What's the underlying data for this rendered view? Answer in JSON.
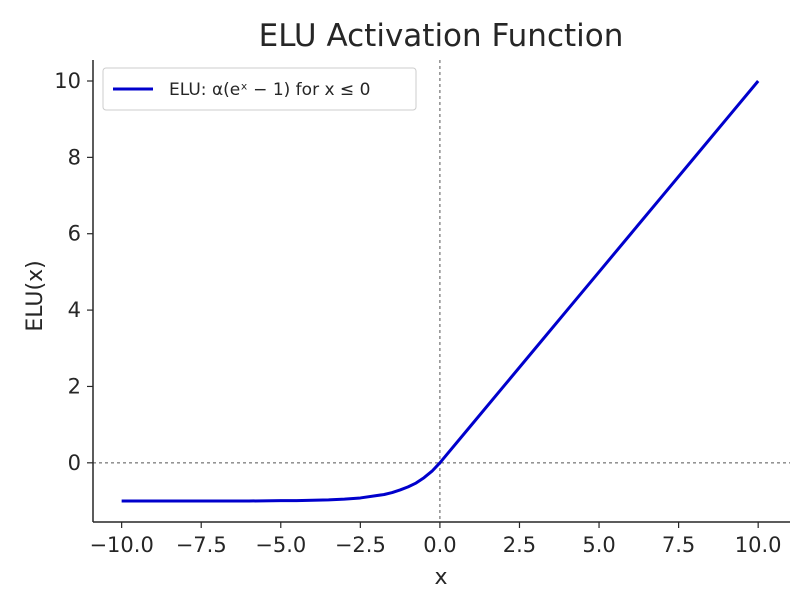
{
  "chart_data": {
    "type": "line",
    "title": "ELU Activation Function",
    "xlabel": "x",
    "ylabel": "ELU(x)",
    "xlim": [
      -10.9,
      11.0
    ],
    "ylim": [
      -1.55,
      10.55
    ],
    "xticks": [
      -10.0,
      -7.5,
      -5.0,
      -2.5,
      0.0,
      2.5,
      5.0,
      7.5,
      10.0
    ],
    "xtick_labels": [
      "−10.0",
      "−7.5",
      "−5.0",
      "−2.5",
      "0.0",
      "2.5",
      "5.0",
      "7.5",
      "10.0"
    ],
    "yticks": [
      0,
      2,
      4,
      6,
      8,
      10
    ],
    "ytick_labels": [
      "0",
      "2",
      "4",
      "6",
      "8",
      "10"
    ],
    "grid": false,
    "reference_lines": {
      "x": 0,
      "y": 0,
      "style": "dashed"
    },
    "legend": {
      "position": "top-left"
    },
    "series": [
      {
        "name": "ELU: α(eˣ − 1) for x ≤ 0",
        "color": "#0000cc",
        "x": [
          -10.0,
          -9.0,
          -8.0,
          -7.0,
          -6.0,
          -5.0,
          -4.5,
          -4.0,
          -3.5,
          -3.0,
          -2.5,
          -2.0,
          -1.75,
          -1.5,
          -1.25,
          -1.0,
          -0.75,
          -0.5,
          -0.25,
          0.0,
          1.0,
          2.0,
          3.0,
          4.0,
          5.0,
          6.0,
          7.0,
          8.0,
          9.0,
          10.0
        ],
        "y": [
          -1.0,
          -1.0,
          -1.0,
          -1.0,
          -1.0,
          -0.99,
          -0.99,
          -0.98,
          -0.97,
          -0.95,
          -0.92,
          -0.86,
          -0.83,
          -0.78,
          -0.71,
          -0.63,
          -0.53,
          -0.39,
          -0.22,
          0.0,
          1.0,
          2.0,
          3.0,
          4.0,
          5.0,
          6.0,
          7.0,
          8.0,
          9.0,
          10.0
        ]
      }
    ]
  }
}
